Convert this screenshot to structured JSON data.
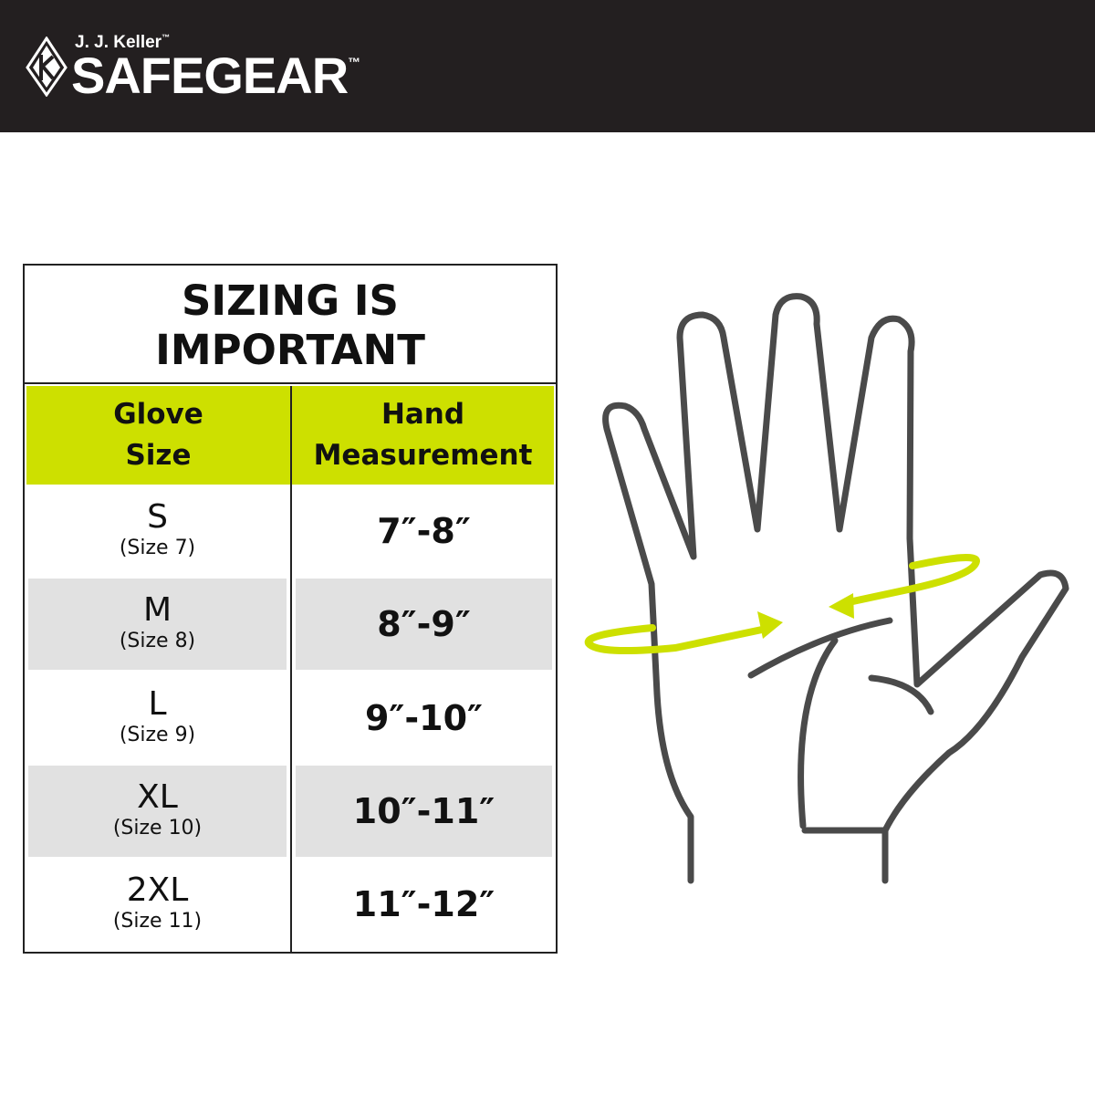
{
  "brand": {
    "company": "J. J. Keller",
    "company_tm": "™",
    "name": "SAFEGEAR",
    "name_tm": "™"
  },
  "chart_title_lines": [
    "SIZING IS",
    "IMPORTANT"
  ],
  "headers": {
    "col1": [
      "Glove",
      "Size"
    ],
    "col2": [
      "Hand",
      "Measurement"
    ]
  },
  "rows": [
    {
      "size": "S",
      "number": "(Size 7)",
      "measurement": "7″-8″"
    },
    {
      "size": "M",
      "number": "(Size 8)",
      "measurement": "8″-9″"
    },
    {
      "size": "L",
      "number": "(Size 9)",
      "measurement": "9″-10″"
    },
    {
      "size": "XL",
      "number": "(Size 10)",
      "measurement": "10″-11″"
    },
    {
      "size": "2XL",
      "number": "(Size 11)",
      "measurement": "11″-12″"
    }
  ],
  "colors": {
    "header_bar": "#231f20",
    "accent": "#cde000",
    "stripe": "#e1e1e1",
    "hand_outline": "#4a4a4a"
  },
  "icons": [
    "jj-keller-logo-icon",
    "hand-measurement-illustration"
  ]
}
